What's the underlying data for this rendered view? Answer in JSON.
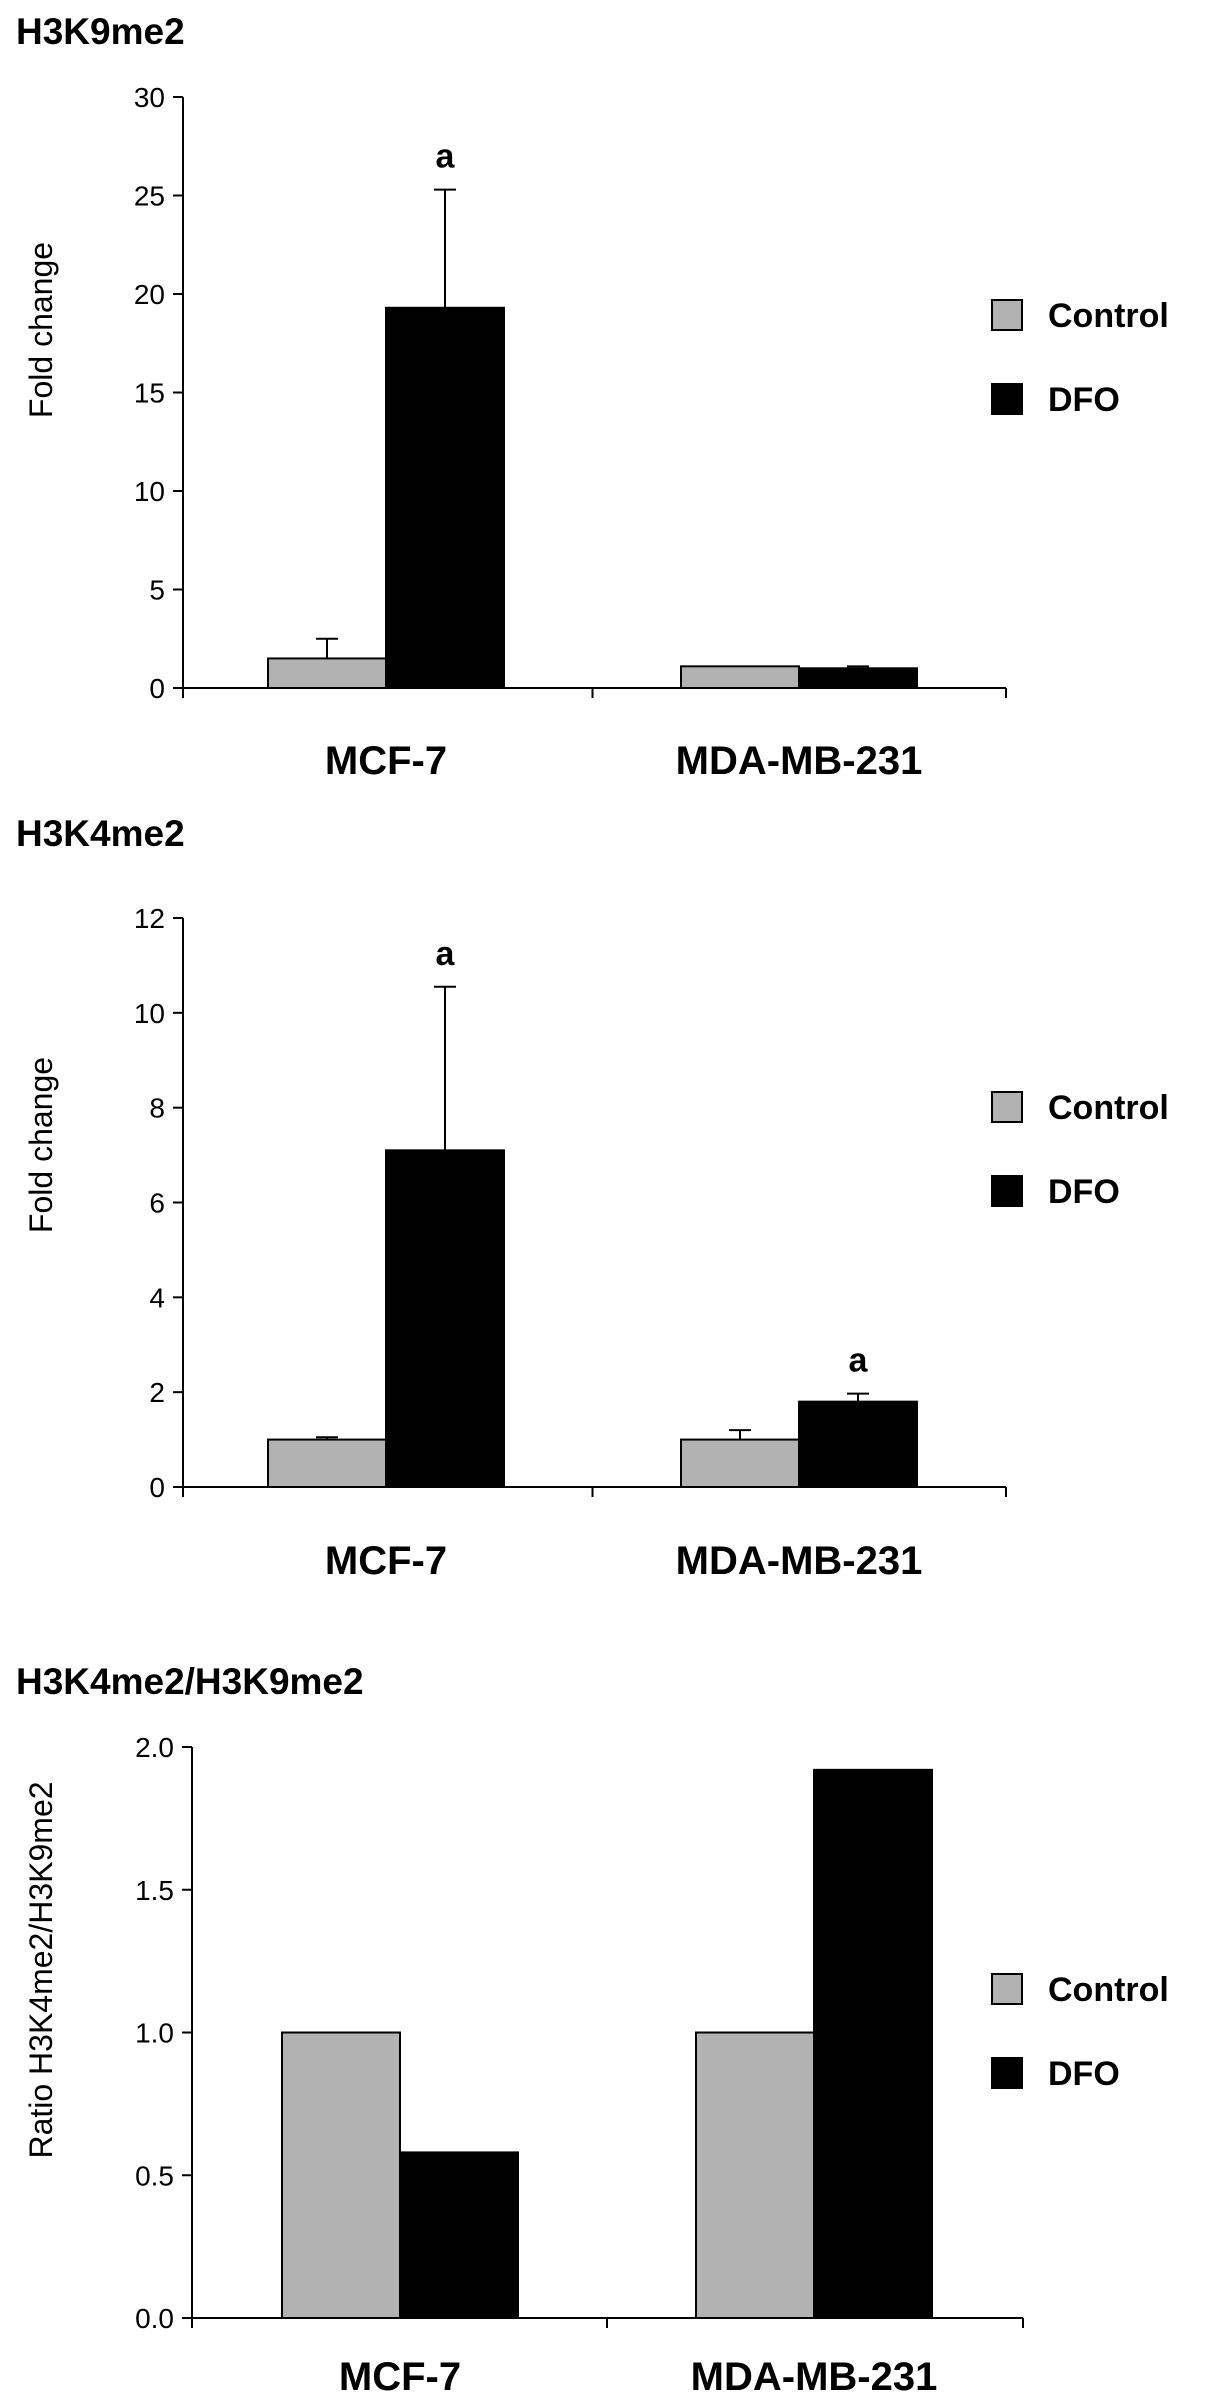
{
  "chart_data": [
    {
      "type": "bar",
      "title": "H3K9me2",
      "ylabel": "Fold change",
      "categories": [
        "MCF-7",
        "MDA-MB-231"
      ],
      "series": [
        {
          "name": "Control",
          "values": [
            1.5,
            1.1
          ],
          "errors": [
            1.0,
            0.0
          ]
        },
        {
          "name": "DFO",
          "values": [
            19.3,
            1.0
          ],
          "errors": [
            6.0,
            0.1
          ]
        }
      ],
      "annotations": [
        {
          "text": "a",
          "category": 0,
          "series": 1
        }
      ],
      "ylim": [
        0,
        30
      ],
      "yticks": [
        0,
        5,
        10,
        15,
        20,
        25,
        30
      ],
      "legend": "right",
      "grid": false
    },
    {
      "type": "bar",
      "title": "H3K4me2",
      "ylabel": "Fold change",
      "categories": [
        "MCF-7",
        "MDA-MB-231"
      ],
      "series": [
        {
          "name": "Control",
          "values": [
            1.0,
            1.0
          ],
          "errors": [
            0.05,
            0.2
          ]
        },
        {
          "name": "DFO",
          "values": [
            7.1,
            1.8
          ],
          "errors": [
            3.45,
            0.17
          ]
        }
      ],
      "annotations": [
        {
          "text": "a",
          "category": 0,
          "series": 1
        },
        {
          "text": "a",
          "category": 1,
          "series": 1
        }
      ],
      "ylim": [
        0,
        12
      ],
      "yticks": [
        0,
        2,
        4,
        6,
        8,
        10,
        12
      ],
      "legend": "right",
      "grid": false
    },
    {
      "type": "bar",
      "title": "H3K4me2/H3K9me2",
      "ylabel": "Ratio H3K4me2/H3K9me2",
      "categories": [
        "MCF-7",
        "MDA-MB-231"
      ],
      "series": [
        {
          "name": "Control",
          "values": [
            1.0,
            1.0
          ]
        },
        {
          "name": "DFO",
          "values": [
            0.58,
            1.92
          ]
        }
      ],
      "annotations": [],
      "ylim": [
        0,
        2.0
      ],
      "yticks": [
        "0.0",
        "0.5",
        "1.0",
        "1.5",
        "2.0"
      ],
      "legend": "right",
      "grid": false
    }
  ],
  "colors": {
    "control": "#b2b2b2",
    "dfo": "#000000",
    "axis": "#000000"
  }
}
